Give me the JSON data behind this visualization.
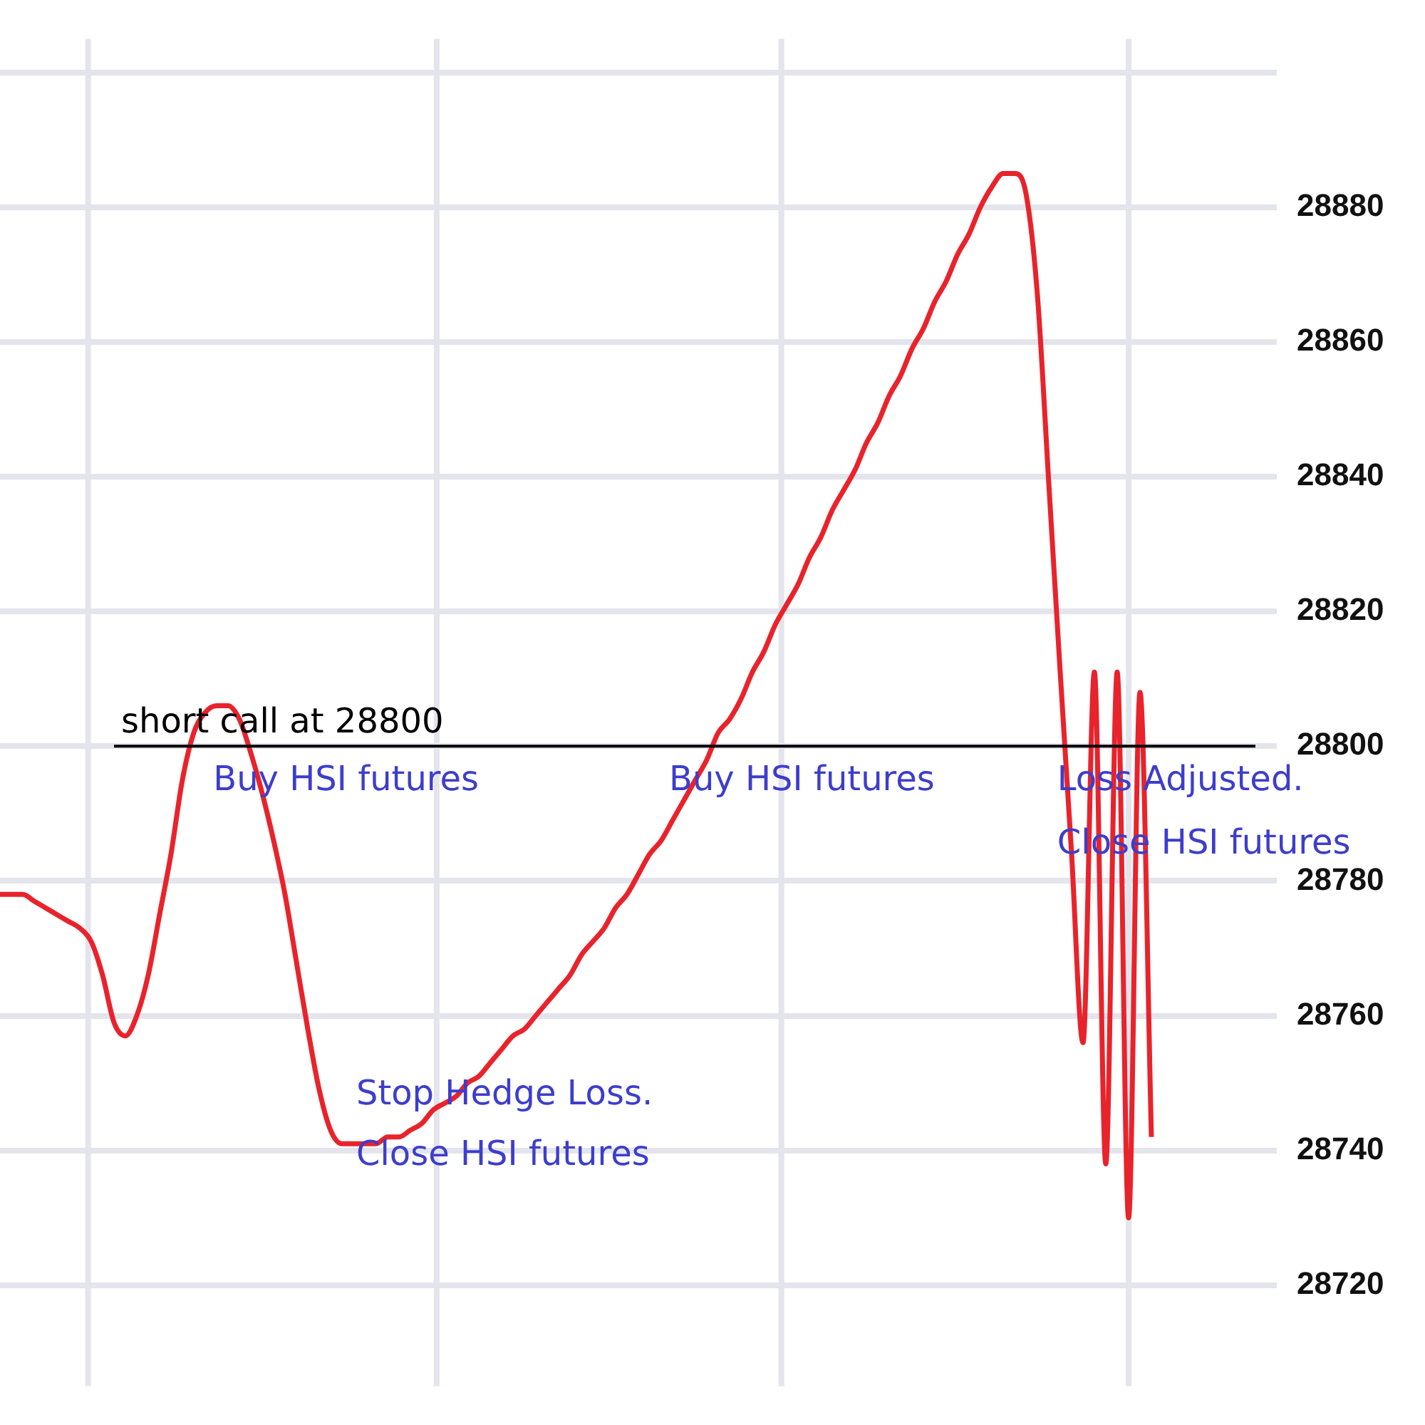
{
  "chart_data": {
    "type": "line",
    "tick_labels": "y",
    "grid": true,
    "marker": "none",
    "line_style": "solid",
    "categories": [
      null,
      null,
      null,
      null,
      null,
      null,
      null,
      null,
      null,
      null,
      null,
      null,
      null,
      null,
      null,
      null,
      null,
      null,
      null,
      null,
      null,
      null,
      null,
      null,
      null,
      null,
      null,
      null,
      null,
      null,
      null,
      null,
      null,
      null,
      null,
      null,
      null,
      null,
      null,
      null,
      null,
      null,
      null,
      null,
      null,
      null,
      null,
      null,
      null,
      null,
      null,
      null,
      null,
      null,
      null,
      null,
      null,
      null,
      null,
      null,
      null,
      null,
      null,
      null,
      null,
      null,
      null,
      null,
      null,
      null,
      null,
      null,
      null,
      null,
      null,
      null,
      null,
      null,
      null,
      null,
      null,
      null,
      null,
      null,
      null,
      null,
      null,
      null,
      null,
      null,
      null,
      null,
      null,
      null,
      null,
      null,
      null,
      null,
      null,
      null,
      null,
      null,
      null,
      null,
      null,
      null,
      null,
      null,
      null,
      null,
      null,
      null,
      null
    ],
    "ylim": [
      28705,
      28905
    ],
    "yticks": [
      28720,
      28740,
      28760,
      28780,
      28800,
      28820,
      28840,
      28860,
      28880,
      {
        "value": 28900,
        "label": null
      }
    ],
    "series": [
      {
        "color": "#e8232b",
        "values": [
          28778,
          28778,
          28778,
          28777,
          28776,
          28775,
          28774,
          28773,
          28771,
          28766,
          28759,
          28757,
          28760,
          28766,
          28775,
          28784,
          28795,
          28802,
          28805,
          28806,
          28806,
          28804,
          28799,
          28793,
          28786,
          28778,
          28768,
          28758,
          28749,
          28743,
          28741,
          28741,
          28741,
          28741,
          28742,
          28742,
          28743,
          28744,
          28746,
          28747,
          28748,
          28750,
          28751,
          28753,
          28755,
          28757,
          28758,
          28760,
          28762,
          28764,
          28766,
          28769,
          28771,
          28773,
          28776,
          28778,
          28781,
          28784,
          28786,
          28789,
          28792,
          28795,
          28798,
          28802,
          28804,
          28807,
          28811,
          28814,
          28818,
          28821,
          28824,
          28828,
          28831,
          28835,
          28838,
          28841,
          28845,
          28848,
          28852,
          28855,
          28859,
          28862,
          28866,
          28869,
          28873,
          28876,
          28880,
          28883,
          28885,
          28885,
          28882,
          28867,
          28839,
          28811,
          28784,
          28756,
          28811,
          28738,
          28811,
          28730,
          28808,
          28742,
          null,
          null,
          null,
          null,
          null,
          null,
          null,
          null,
          null,
          null,
          null
        ]
      }
    ],
    "ref_lines": [
      {
        "axis": "y",
        "value": 28800,
        "label": "short call at 28800",
        "color": "#000000",
        "line_style": "solid"
      }
    ],
    "annotations": [
      "Buy HSI futures",
      "Buy HSI futures",
      "Stop Hedge Loss.",
      "Close HSI futures",
      "Loss Adjusted.",
      "Close HSI futures"
    ]
  }
}
